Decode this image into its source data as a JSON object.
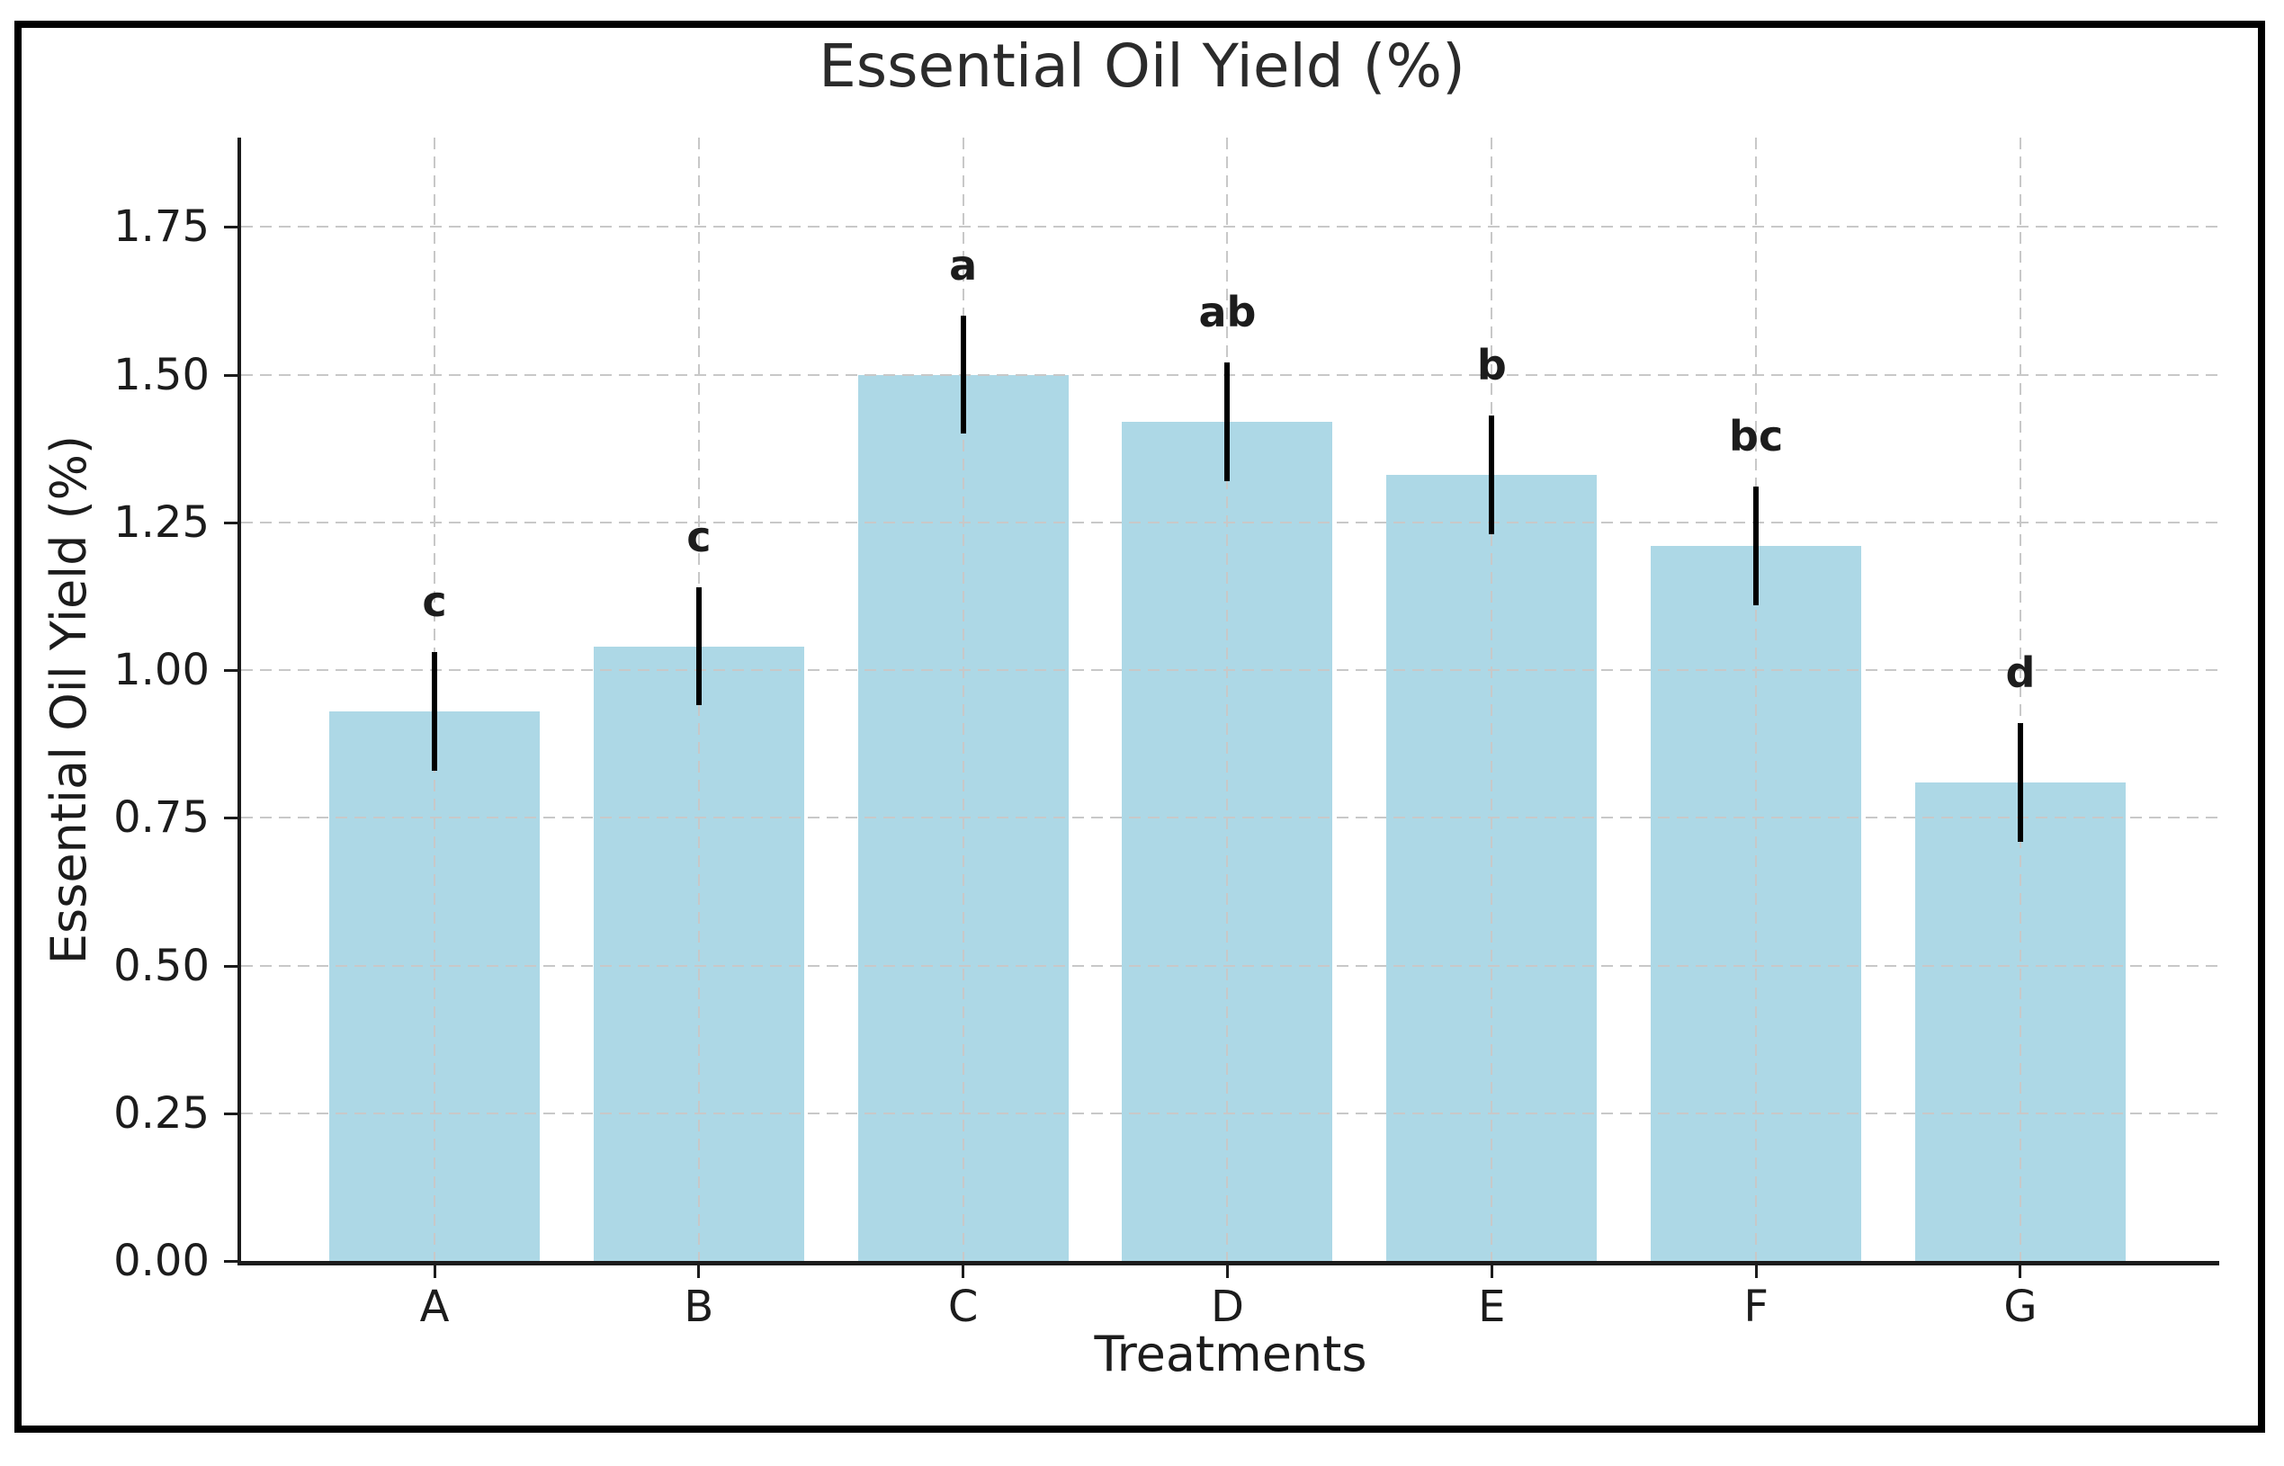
{
  "chart_data": {
    "type": "bar",
    "title": "Essential Oil Yield (%)",
    "xlabel": "Treatments",
    "ylabel": "Essential Oil Yield (%)",
    "categories": [
      "A",
      "B",
      "C",
      "D",
      "E",
      "F",
      "G"
    ],
    "values": [
      0.93,
      1.04,
      1.5,
      1.42,
      1.33,
      1.21,
      0.81
    ],
    "errors": [
      0.1,
      0.1,
      0.1,
      0.1,
      0.1,
      0.1,
      0.1
    ],
    "sig_letters": [
      "c",
      "c",
      "a",
      "ab",
      "b",
      "bc",
      "d"
    ],
    "ylim": [
      0,
      1.9
    ],
    "yticks": [
      0,
      0.25,
      0.5,
      0.75,
      1.0,
      1.25,
      1.5,
      1.75
    ],
    "ytick_labels": [
      "0.00",
      "0.25",
      "0.50",
      "0.75",
      "1.00",
      "1.25",
      "1.50",
      "1.75"
    ],
    "grid": {
      "horizontal": true,
      "vertical": true,
      "style": "dashed"
    },
    "legend": "none",
    "colors": {
      "bar": "#ADD8E6",
      "error_bar": "#000000",
      "grid": "#c8c8c8",
      "spine": "#1c1c1c",
      "text": "#1c1c1c",
      "frame": "#000000",
      "background": "#ffffff"
    }
  }
}
